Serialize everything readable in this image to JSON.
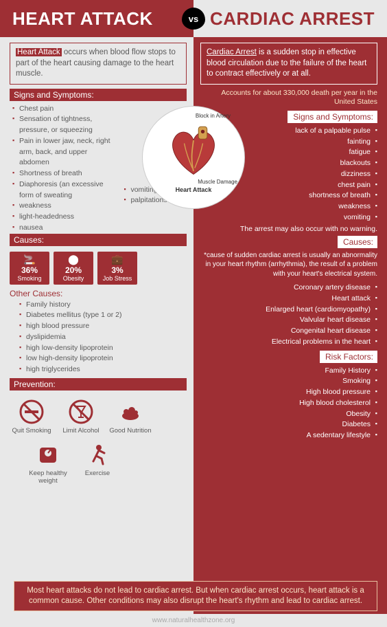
{
  "header": {
    "left_title": "HEART ATTACK",
    "right_title": "CARDIAC ARREST",
    "vs": "vs"
  },
  "colors": {
    "primary": "#9e2f34",
    "light_bg": "#e8e8e8",
    "accent_text": "#fbe6c8",
    "body_text": "#5a5a5a"
  },
  "left": {
    "intro_highlight": "Heart Attack",
    "intro_text": " occurs when blood flow stops to part of the heart causing damage to the heart muscle.",
    "signs_title": "Signs and Symptoms:",
    "symptoms_col1": [
      "Chest pain",
      "Sensation of tightness, pressure, or squeezing",
      "Pain in lower jaw, neck, right arm, back, and upper abdomen",
      "Shortness of breath",
      "Diaphoresis (an excessive form of sweating",
      "weakness",
      "light-headedness",
      "nausea"
    ],
    "symptoms_col2": [
      "vomiting",
      "palpitations"
    ],
    "causes_title": "Causes:",
    "cause_boxes": [
      {
        "pct": "36%",
        "label": "Smoking"
      },
      {
        "pct": "20%",
        "label": "Obesity"
      },
      {
        "pct": "3%",
        "label": "Job Stress"
      }
    ],
    "other_causes_title": "Other Causes:",
    "other_causes": [
      "Family history",
      "Diabetes mellitus (type 1 or 2)",
      "high blood pressure",
      "dyslipidemia",
      "high low-density lipoprotein",
      "low high-density lipoprotein",
      "high triglycerides"
    ],
    "prevention_title": "Prevention:",
    "prevention_row1": [
      {
        "name": "quit-smoking",
        "label": "Quit Smoking"
      },
      {
        "name": "limit-alcohol",
        "label": "Limit Alcohol"
      },
      {
        "name": "good-nutrition",
        "label": "Good Nutrition"
      }
    ],
    "prevention_row2": [
      {
        "name": "healthy-weight",
        "label": "Keep healthy weight"
      },
      {
        "name": "exercise",
        "label": "Exercise"
      }
    ]
  },
  "right": {
    "intro_highlight": "Cardiac Arrest",
    "intro_text": " is a sudden stop in effective blood circulation due to the failure of the heart to contract effectively or at all.",
    "stat": "Accounts for about 330,000 death per year in the United States",
    "signs_title": "Signs and Symptoms:",
    "symptoms": [
      "lack of a palpable pulse",
      "fainting",
      "fatigue",
      "blackouts",
      "dizziness",
      "chest pain",
      "shortness of breath",
      "weakness",
      "vomiting"
    ],
    "symptom_note": "The arrest may also occur with no warning.",
    "causes_title": "Causes:",
    "cause_note": "*cause of sudden cardiac arrest is usually an abnormality in your heart rhythm (arrhythmia), the result of a problem with your heart's electrical system.",
    "causes": [
      "Coronary artery disease",
      "Heart attack",
      "Enlarged heart (cardiomyopathy)",
      "Valvular heart disease",
      "Congenital heart disease",
      "Electrical problems in the heart"
    ],
    "risk_title": "Risk Factors:",
    "risks": [
      "Family History",
      "Smoking",
      "High blood pressure",
      "High blood cholesterol",
      "Obesity",
      "Diabetes",
      "A sedentary lifestyle"
    ]
  },
  "heart": {
    "block_label": "Block in Artery",
    "muscle_label": "Muscle Damage",
    "caption": "Heart Attack"
  },
  "footer": {
    "text": "Most heart attacks do not lead to cardiac arrest. But when cardiac arrest occurs, heart attack is a common cause. Other conditions may also disrupt the heart's rhythm and lead to cardiac arrest."
  },
  "source": "www.naturalhealthzone.org"
}
